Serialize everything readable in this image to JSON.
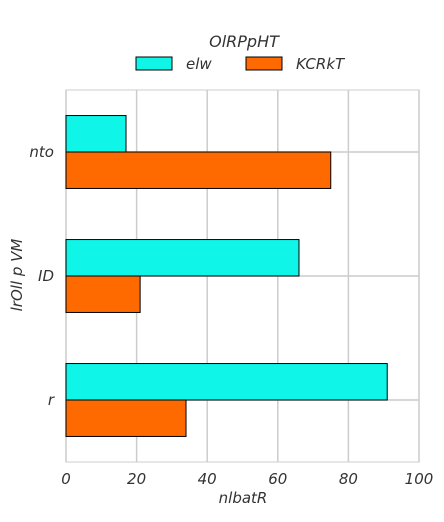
{
  "chart_data": {
    "type": "bar",
    "orientation": "horizontal",
    "categories": [
      "nto",
      "ID",
      "r"
    ],
    "series": [
      {
        "name": "elw",
        "values": [
          17,
          66,
          91
        ],
        "color": "#0ff5e8"
      },
      {
        "name": "KCRkT",
        "values": [
          75,
          21,
          34
        ],
        "color": "#ff6a00"
      }
    ],
    "xlabel": "nlbatR",
    "ylabel": "lrOll p    VM",
    "xlim": [
      0,
      100
    ],
    "xticks": [
      0,
      20,
      40,
      60,
      80,
      100
    ],
    "grid": true,
    "legend": {
      "title": "OlRPpHT",
      "placement": "top-center"
    }
  },
  "colors": {
    "grid": "#cccccc",
    "bar_edge": "#000000",
    "text": "#333333"
  }
}
